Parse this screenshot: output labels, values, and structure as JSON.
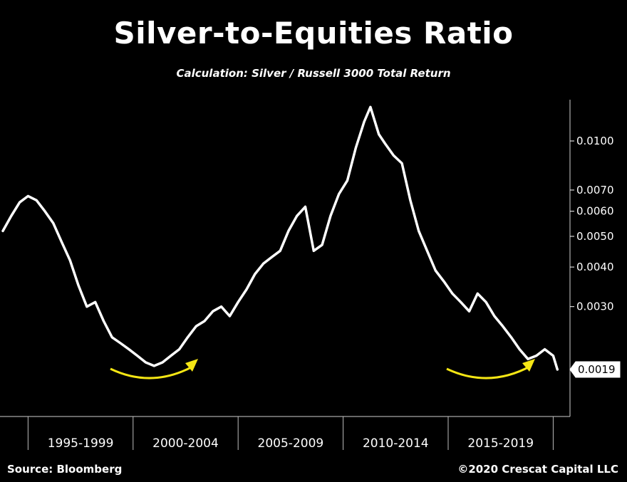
{
  "header": {
    "title": "Silver-to-Equities Ratio",
    "subtitle": "Calculation: Silver / Russell 3000 Total Return"
  },
  "footer": {
    "source": "Source: Bloomberg",
    "copyright": "©2020 Crescat Capital LLC"
  },
  "colors": {
    "background": "#000000",
    "line": "#ffffff",
    "highlight_arrow": "#f5e614"
  },
  "chart_data": {
    "type": "line",
    "title": "Silver-to-Equities Ratio",
    "subtitle": "Calculation: Silver / Russell 3000 Total Return",
    "y_scale": "log",
    "y_axis_position": "right",
    "yticks": [
      0.01,
      0.007,
      0.006,
      0.005,
      0.004,
      0.003
    ],
    "ytick_labels": [
      "0.0100",
      "0.0070",
      "0.0060",
      "0.0050",
      "0.0040",
      "0.0030"
    ],
    "last_value_label": "0.0019",
    "categories": [
      "1995-1999",
      "2000-2004",
      "2005-2009",
      "2010-2014",
      "2015-2019"
    ],
    "xlim": [
      1993.8,
      2020.8
    ],
    "ylim": [
      0.00135,
      0.0135
    ],
    "grid": false,
    "series": [
      {
        "x": [
          1993.8,
          1994.2,
          1994.6,
          1995.0,
          1995.4,
          1995.8,
          1996.2,
          1996.6,
          1997.0,
          1997.4,
          1997.8,
          1998.2,
          1998.6,
          1999.0,
          1999.4,
          1999.8,
          2000.2,
          2000.6,
          2001.0,
          2001.4,
          2001.8,
          2002.2,
          2002.6,
          2003.0,
          2003.4,
          2003.8,
          2004.2,
          2004.6,
          2005.0,
          2005.4,
          2005.8,
          2006.2,
          2006.6,
          2007.0,
          2007.4,
          2007.8,
          2008.2,
          2008.6,
          2009.0,
          2009.4,
          2009.8,
          2010.2,
          2010.6,
          2011.0,
          2011.3,
          2011.7,
          2012.0,
          2012.4,
          2012.8,
          2013.2,
          2013.6,
          2014.0,
          2014.4,
          2014.8,
          2015.2,
          2015.6,
          2016.0,
          2016.4,
          2016.8,
          2017.2,
          2017.6,
          2018.0,
          2018.4,
          2018.8,
          2019.2,
          2019.6,
          2020.0,
          2020.2
        ],
        "y": [
          0.0052,
          0.0058,
          0.0064,
          0.0067,
          0.0065,
          0.006,
          0.0055,
          0.0048,
          0.0042,
          0.0035,
          0.003,
          0.0031,
          0.0027,
          0.0024,
          0.0023,
          0.0022,
          0.0021,
          0.002,
          0.00195,
          0.002,
          0.0021,
          0.0022,
          0.0024,
          0.0026,
          0.0027,
          0.0029,
          0.003,
          0.0028,
          0.0031,
          0.0034,
          0.0038,
          0.0041,
          0.0043,
          0.0045,
          0.0052,
          0.0058,
          0.0062,
          0.0045,
          0.0047,
          0.0058,
          0.0068,
          0.0075,
          0.0095,
          0.0115,
          0.0128,
          0.0105,
          0.0098,
          0.009,
          0.0085,
          0.0065,
          0.0052,
          0.0045,
          0.0039,
          0.0036,
          0.0033,
          0.0031,
          0.0029,
          0.0033,
          0.0031,
          0.0028,
          0.0026,
          0.0024,
          0.0022,
          0.00205,
          0.0021,
          0.0022,
          0.0021,
          0.0019
        ]
      }
    ]
  }
}
